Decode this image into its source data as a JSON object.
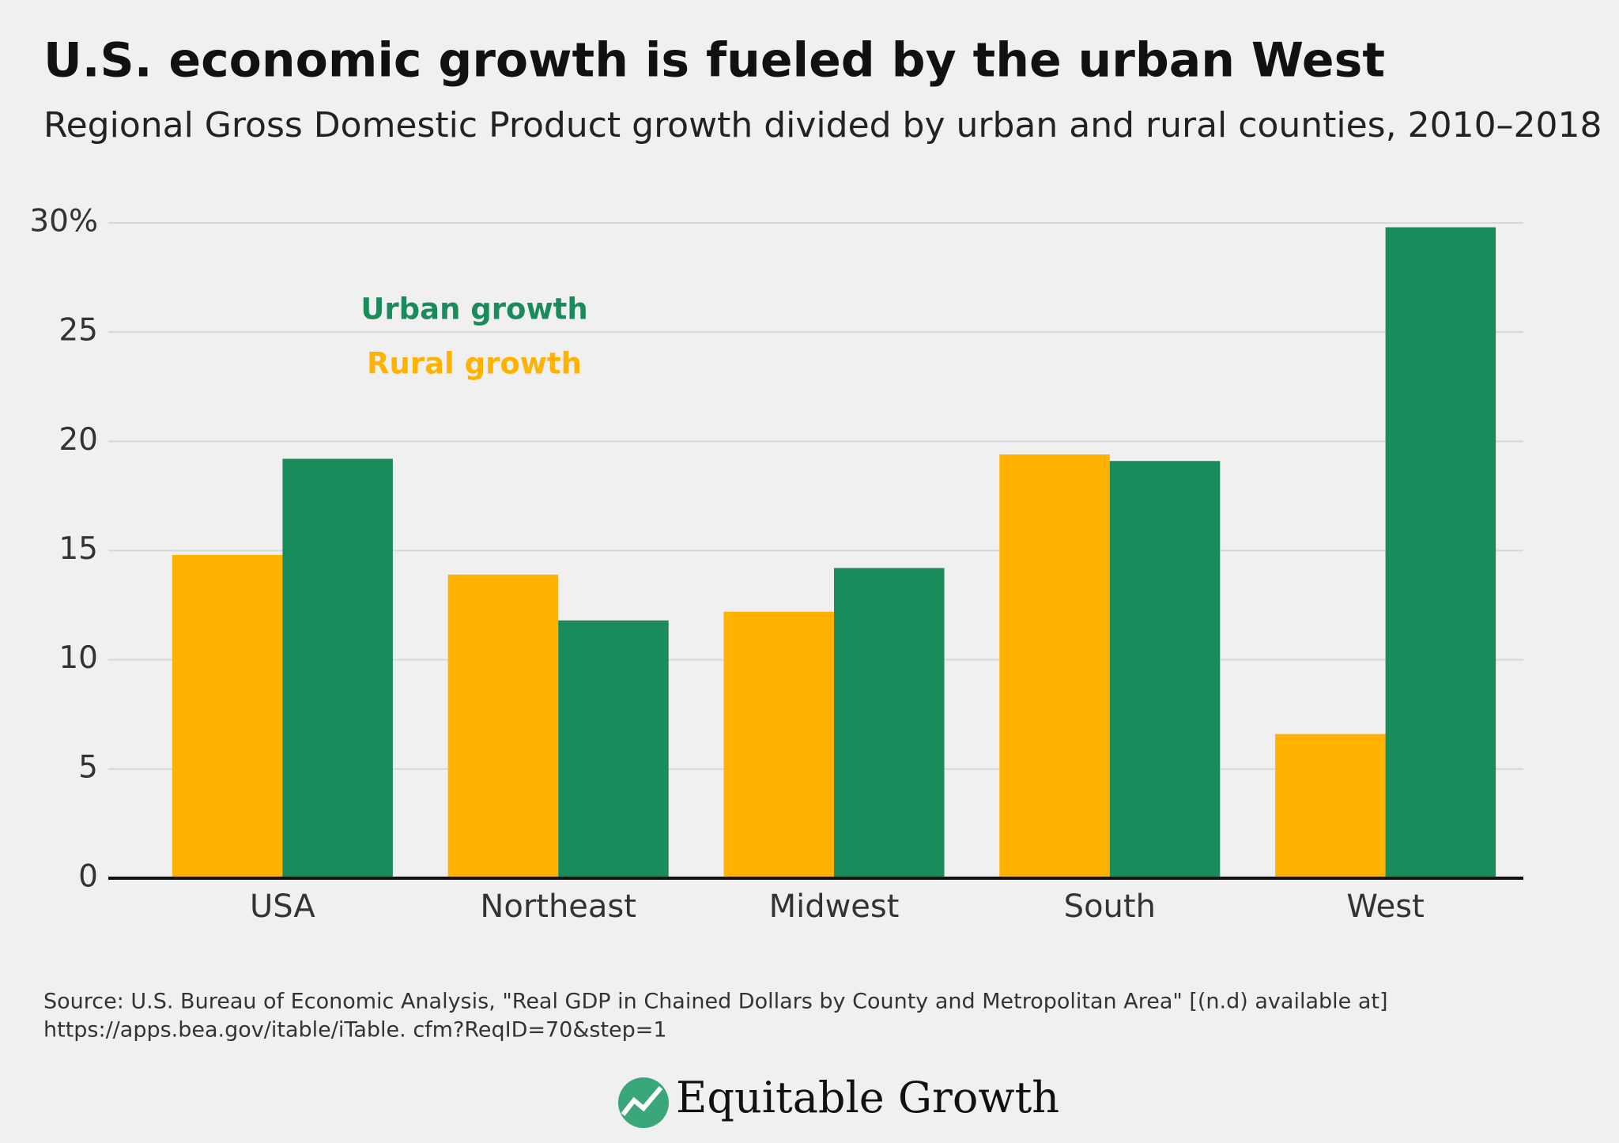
{
  "chart_data": {
    "type": "bar",
    "title": "U.S. economic growth is fueled by the urban West",
    "subtitle": "Regional Gross Domestic Product growth divided by urban and rural counties, 2010–2018",
    "categories": [
      "USA",
      "Northeast",
      "Midwest",
      "South",
      "West"
    ],
    "series": [
      {
        "name": "Rural growth",
        "color": "#ffb300",
        "values": [
          14.8,
          13.9,
          12.2,
          19.4,
          6.6
        ]
      },
      {
        "name": "Urban growth",
        "color": "#1a8c5b",
        "values": [
          19.2,
          11.8,
          14.2,
          19.1,
          29.8
        ]
      }
    ],
    "ylim": [
      0,
      30
    ],
    "yticks": [
      0,
      5,
      10,
      15,
      20,
      25,
      {
        "value": 30,
        "label": "30%"
      }
    ],
    "grid": true,
    "source": [
      "Source: U.S. Bureau of Economic Analysis, \"Real GDP in Chained Dollars by County and Metropolitan Area\" [(n.d) available at]",
      "https://apps.bea.gov/itable/iTable. cfm?ReqID=70&step=1"
    ],
    "brand": "Equitable Growth"
  }
}
